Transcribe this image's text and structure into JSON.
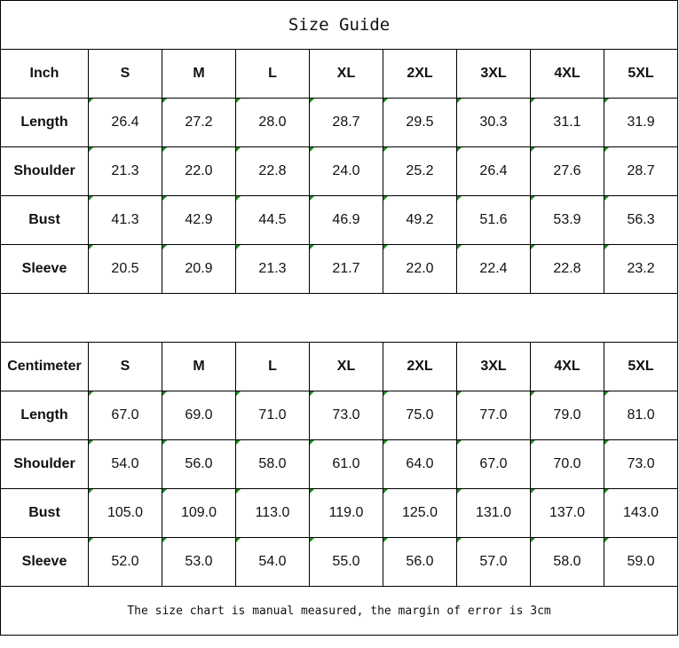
{
  "title": "Size Guide",
  "sizes": [
    "S",
    "M",
    "L",
    "XL",
    "2XL",
    "3XL",
    "4XL",
    "5XL"
  ],
  "tables": [
    {
      "unit": "Inch",
      "rows": [
        {
          "label": "Length",
          "values": [
            "26.4",
            "27.2",
            "28.0",
            "28.7",
            "29.5",
            "30.3",
            "31.1",
            "31.9"
          ]
        },
        {
          "label": "Shoulder",
          "values": [
            "21.3",
            "22.0",
            "22.8",
            "24.0",
            "25.2",
            "26.4",
            "27.6",
            "28.7"
          ]
        },
        {
          "label": "Bust",
          "values": [
            "41.3",
            "42.9",
            "44.5",
            "46.9",
            "49.2",
            "51.6",
            "53.9",
            "56.3"
          ]
        },
        {
          "label": "Sleeve",
          "values": [
            "20.5",
            "20.9",
            "21.3",
            "21.7",
            "22.0",
            "22.4",
            "22.8",
            "23.2"
          ]
        }
      ]
    },
    {
      "unit": "Centimeter",
      "rows": [
        {
          "label": "Length",
          "values": [
            "67.0",
            "69.0",
            "71.0",
            "73.0",
            "75.0",
            "77.0",
            "79.0",
            "81.0"
          ]
        },
        {
          "label": "Shoulder",
          "values": [
            "54.0",
            "56.0",
            "58.0",
            "61.0",
            "64.0",
            "67.0",
            "70.0",
            "73.0"
          ]
        },
        {
          "label": "Bust",
          "values": [
            "105.0",
            "109.0",
            "113.0",
            "119.0",
            "125.0",
            "131.0",
            "137.0",
            "143.0"
          ]
        },
        {
          "label": "Sleeve",
          "values": [
            "52.0",
            "53.0",
            "54.0",
            "55.0",
            "56.0",
            "57.0",
            "58.0",
            "59.0"
          ]
        }
      ]
    }
  ],
  "note": "The size chart is manual measured, the margin of error is 3cm",
  "colors": {
    "corner_marker": "#1a8a1a",
    "border": "#000000"
  }
}
